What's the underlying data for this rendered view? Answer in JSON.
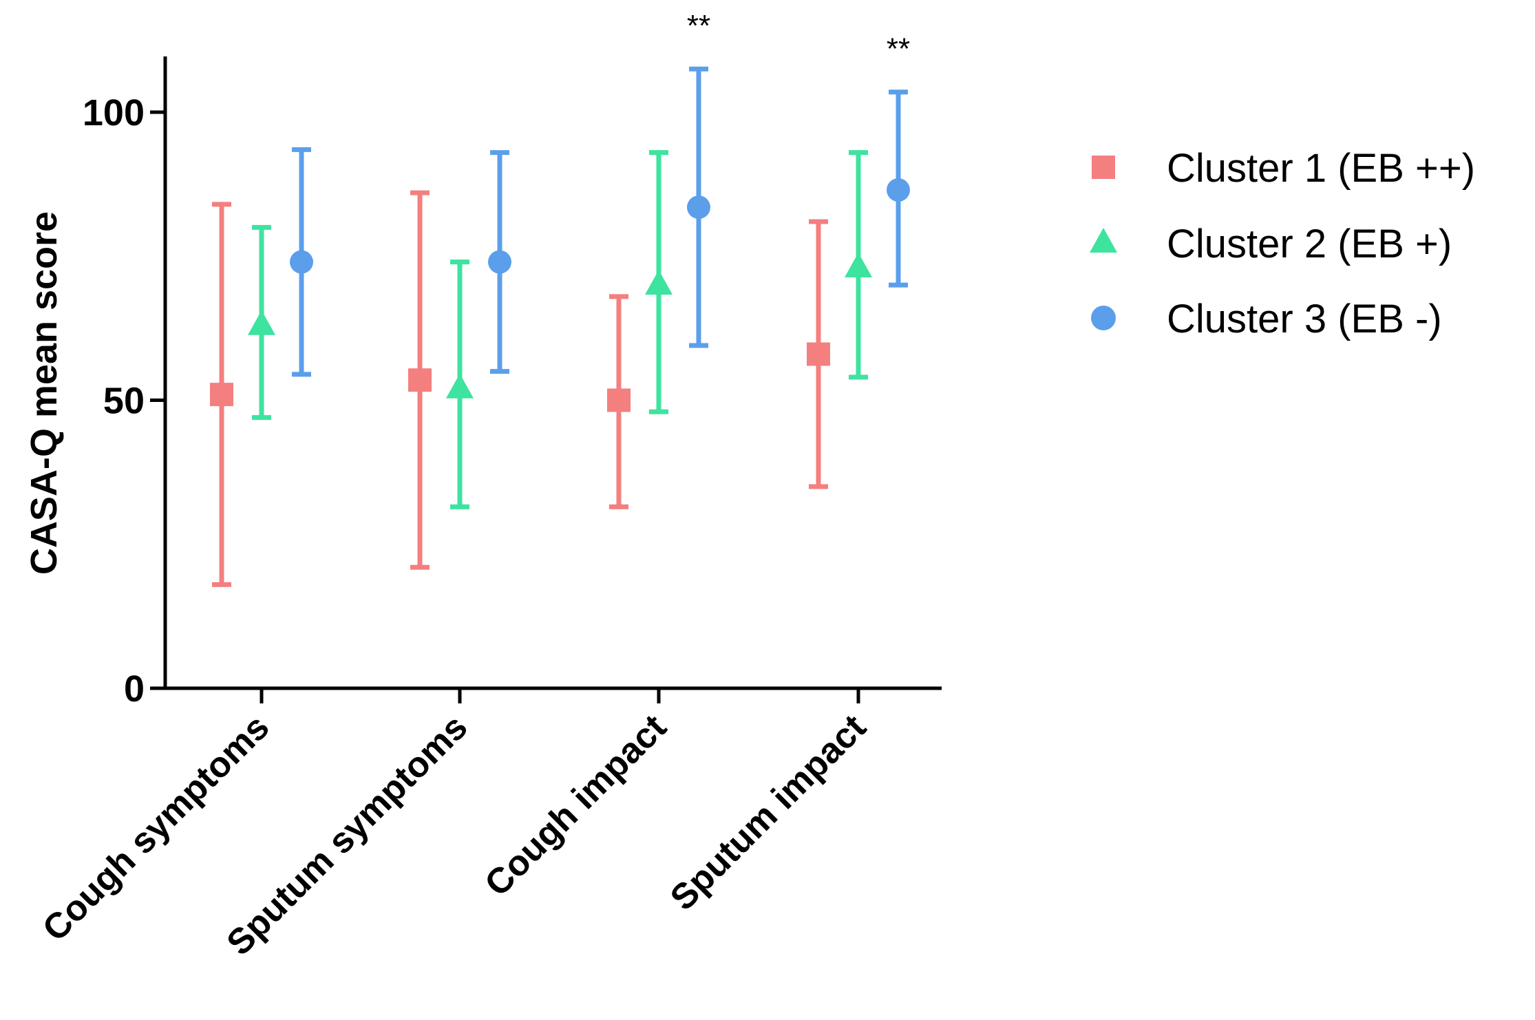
{
  "chart_data": {
    "type": "scatter",
    "subtype": "mean-with-error-bars",
    "title": "",
    "xlabel": "",
    "ylabel": "CASA-Q mean score",
    "ylim": [
      0,
      110
    ],
    "yticks": [
      0,
      50,
      100
    ],
    "categories": [
      "Cough symptoms",
      "Sputum symptoms",
      "Cough impact",
      "Sputum impact"
    ],
    "series": [
      {
        "name": "Cluster 1 (EB ++)",
        "marker": "square",
        "color": "#F47F7F",
        "values": [
          51,
          53.5,
          50,
          58
        ],
        "lower": [
          18,
          21,
          31.5,
          35
        ],
        "upper": [
          84,
          86,
          68,
          81
        ]
      },
      {
        "name": "Cluster 2 (EB +)",
        "marker": "triangle",
        "color": "#3DE39F",
        "values": [
          63,
          52,
          70,
          73
        ],
        "lower": [
          47,
          31.5,
          48,
          54
        ],
        "upper": [
          80,
          74,
          93,
          93
        ]
      },
      {
        "name": "Cluster 3 (EB -)",
        "marker": "circle",
        "color": "#5B9FEB",
        "values": [
          74,
          74,
          83.5,
          86.5
        ],
        "lower": [
          54.5,
          55,
          59.5,
          70
        ],
        "upper": [
          93.5,
          93,
          107.5,
          103.5
        ]
      }
    ],
    "annotations": [
      {
        "category": "Cough impact",
        "text": "**"
      },
      {
        "category": "Sputum impact",
        "text": "**"
      }
    ],
    "legend_position": "top-right",
    "grid": false
  }
}
